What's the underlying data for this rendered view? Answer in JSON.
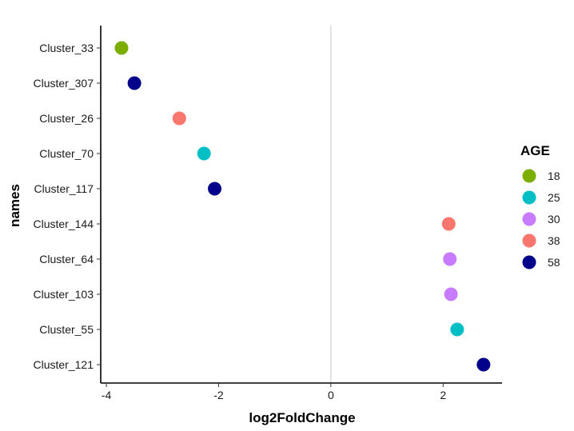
{
  "chart_data": {
    "type": "scatter",
    "title": "",
    "xlabel": "log2FoldChange",
    "ylabel": "names",
    "xlim": [
      -4.1,
      3.05
    ],
    "xticks": [
      -4,
      -2,
      0,
      2
    ],
    "reference_line_x": 0,
    "grid": false,
    "legend": {
      "title": "AGE",
      "placement": "right",
      "entries": [
        {
          "label": "18",
          "color": "#7cae00"
        },
        {
          "label": "25",
          "color": "#00bfc4"
        },
        {
          "label": "30",
          "color": "#c77cff"
        },
        {
          "label": "38",
          "color": "#f8766d"
        },
        {
          "label": "58",
          "color": "#00008b"
        }
      ]
    },
    "categories": [
      "Cluster_33",
      "Cluster_307",
      "Cluster_26",
      "Cluster_70",
      "Cluster_117",
      "Cluster_144",
      "Cluster_64",
      "Cluster_103",
      "Cluster_55",
      "Cluster_121"
    ],
    "points": [
      {
        "name": "Cluster_33",
        "x": -3.73,
        "age": "18"
      },
      {
        "name": "Cluster_307",
        "x": -3.5,
        "age": "58"
      },
      {
        "name": "Cluster_26",
        "x": -2.7,
        "age": "38"
      },
      {
        "name": "Cluster_70",
        "x": -2.26,
        "age": "25"
      },
      {
        "name": "Cluster_117",
        "x": -2.07,
        "age": "58"
      },
      {
        "name": "Cluster_144",
        "x": 2.1,
        "age": "38"
      },
      {
        "name": "Cluster_64",
        "x": 2.12,
        "age": "30"
      },
      {
        "name": "Cluster_103",
        "x": 2.14,
        "age": "30"
      },
      {
        "name": "Cluster_55",
        "x": 2.25,
        "age": "25"
      },
      {
        "name": "Cluster_121",
        "x": 2.72,
        "age": "58"
      }
    ]
  }
}
